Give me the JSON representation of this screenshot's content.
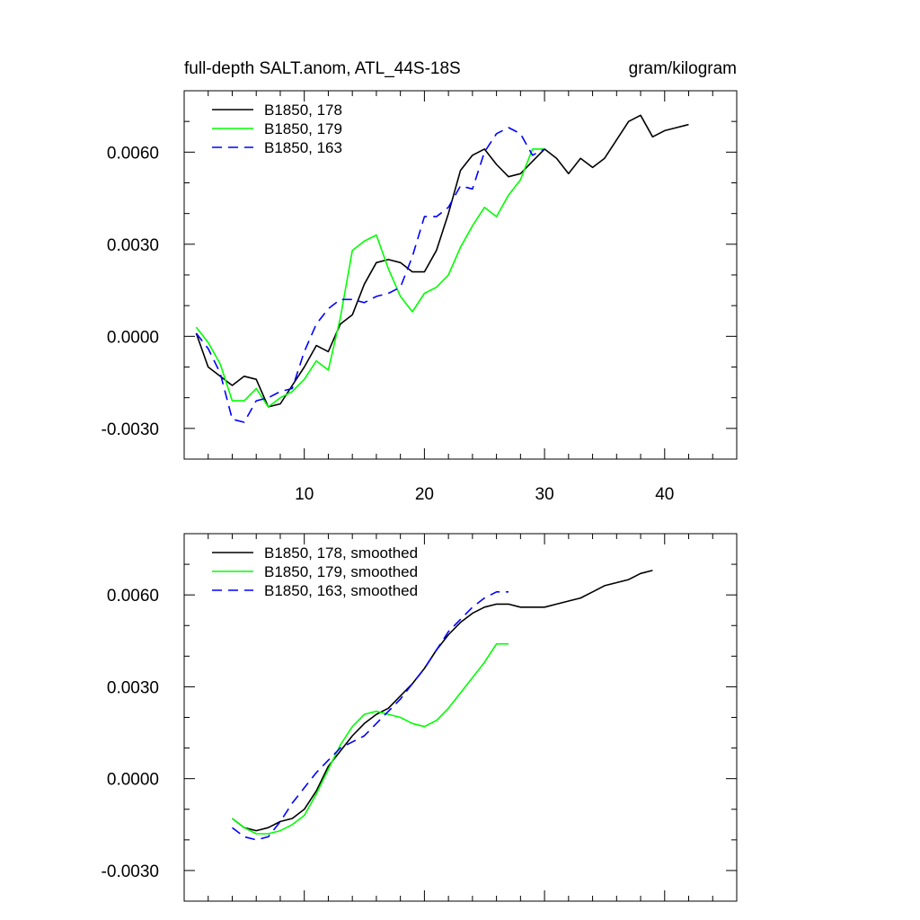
{
  "chart_data": [
    {
      "type": "line",
      "title_left": "full-depth SALT.anom, ATL_44S-18S",
      "title_right": "gram/kilogram",
      "xlim": [
        0,
        46
      ],
      "ylim": [
        -0.004,
        0.008
      ],
      "x_ticks": [
        10,
        20,
        30,
        40
      ],
      "x_tick_labels": [
        "10",
        "20",
        "30",
        "40"
      ],
      "x_minor_step": 2,
      "y_ticks": [
        -0.003,
        0.0,
        0.003,
        0.006
      ],
      "y_tick_labels": [
        "-0.0030",
        "0.0000",
        "0.0030",
        "0.0060"
      ],
      "y_minor_step": 0.001,
      "series": [
        {
          "name": "B1850, 178",
          "color": "#000000",
          "dash": "solid",
          "x": [
            1,
            2,
            3,
            4,
            5,
            6,
            7,
            8,
            9,
            10,
            11,
            12,
            13,
            14,
            15,
            16,
            17,
            18,
            19,
            20,
            21,
            22,
            23,
            24,
            25,
            26,
            27,
            28,
            29,
            30,
            31,
            32,
            33,
            34,
            35,
            36,
            37,
            38,
            39,
            40,
            41,
            42
          ],
          "values": [
            0.0001,
            -0.001,
            -0.0013,
            -0.0016,
            -0.0013,
            -0.0014,
            -0.0023,
            -0.0022,
            -0.0016,
            -0.001,
            -0.0003,
            -0.0005,
            0.0004,
            0.0007,
            0.0017,
            0.0024,
            0.0025,
            0.0024,
            0.0021,
            0.0021,
            0.0028,
            0.004,
            0.0054,
            0.0059,
            0.0061,
            0.0056,
            0.0052,
            0.0053,
            0.0057,
            0.0061,
            0.0058,
            0.0053,
            0.0058,
            0.0055,
            0.0058,
            0.0064,
            0.007,
            0.0072,
            0.0065,
            0.0067,
            0.0068,
            0.0069
          ]
        },
        {
          "name": "B1850, 179",
          "color": "#00ff00",
          "dash": "solid",
          "x": [
            1,
            2,
            3,
            4,
            5,
            6,
            7,
            8,
            9,
            10,
            11,
            12,
            13,
            14,
            15,
            16,
            17,
            18,
            19,
            20,
            21,
            22,
            23,
            24,
            25,
            26,
            27,
            28,
            29,
            30
          ],
          "values": [
            0.0003,
            -0.0002,
            -0.0009,
            -0.0021,
            -0.0021,
            -0.0017,
            -0.0023,
            -0.002,
            -0.0018,
            -0.0014,
            -0.0008,
            -0.0011,
            0.0006,
            0.0028,
            0.0031,
            0.0033,
            0.0022,
            0.0013,
            0.0008,
            0.0014,
            0.0016,
            0.002,
            0.0029,
            0.0036,
            0.0042,
            0.0039,
            0.0046,
            0.0051,
            0.0061,
            0.0061
          ]
        },
        {
          "name": "B1850, 163",
          "color": "#0000ff",
          "dash": "dashed",
          "x": [
            1,
            2,
            3,
            4,
            5,
            6,
            7,
            8,
            9,
            10,
            11,
            12,
            13,
            14,
            15,
            16,
            17,
            18,
            19,
            20,
            21,
            22,
            23,
            24,
            25,
            26,
            27,
            28,
            29,
            30
          ],
          "values": [
            0.0001,
            -0.0004,
            -0.0012,
            -0.0027,
            -0.0028,
            -0.0021,
            -0.002,
            -0.0018,
            -0.0017,
            -0.0005,
            0.0004,
            0.0009,
            0.0012,
            0.0012,
            0.0011,
            0.0013,
            0.0014,
            0.0016,
            0.0026,
            0.0039,
            0.0039,
            0.0042,
            0.0049,
            0.0048,
            0.006,
            0.0066,
            0.0068,
            0.0066,
            0.0059,
            0.0061
          ]
        }
      ]
    },
    {
      "type": "line",
      "title_left": "",
      "title_right": "",
      "xlim": [
        0,
        46
      ],
      "ylim": [
        -0.004,
        0.008
      ],
      "x_ticks": [
        10,
        20,
        30,
        40
      ],
      "x_tick_labels": [],
      "x_minor_step": 2,
      "y_ticks": [
        -0.003,
        0.0,
        0.003,
        0.006
      ],
      "y_tick_labels": [
        "-0.0030",
        "0.0000",
        "0.0030",
        "0.0060"
      ],
      "y_minor_step": 0.001,
      "series": [
        {
          "name": "B1850, 178, smoothed",
          "color": "#000000",
          "dash": "solid",
          "x": [
            4,
            5,
            6,
            7,
            8,
            9,
            10,
            11,
            12,
            13,
            14,
            15,
            16,
            17,
            18,
            19,
            20,
            21,
            22,
            23,
            24,
            25,
            26,
            27,
            28,
            29,
            30,
            31,
            32,
            33,
            34,
            35,
            36,
            37,
            38,
            39
          ],
          "values": [
            -0.0013,
            -0.0016,
            -0.0017,
            -0.0016,
            -0.0014,
            -0.0013,
            -0.001,
            -0.0004,
            0.0004,
            0.0009,
            0.0014,
            0.0018,
            0.0021,
            0.0023,
            0.0027,
            0.0031,
            0.0036,
            0.0042,
            0.0047,
            0.0051,
            0.0054,
            0.0056,
            0.0057,
            0.0057,
            0.0056,
            0.0056,
            0.0056,
            0.0057,
            0.0058,
            0.0059,
            0.0061,
            0.0063,
            0.0064,
            0.0065,
            0.0067,
            0.0068
          ]
        },
        {
          "name": "B1850, 179, smoothed",
          "color": "#00ff00",
          "dash": "solid",
          "x": [
            4,
            5,
            6,
            7,
            8,
            9,
            10,
            11,
            12,
            13,
            14,
            15,
            16,
            17,
            18,
            19,
            20,
            21,
            22,
            23,
            24,
            25,
            26,
            27
          ],
          "values": [
            -0.0013,
            -0.0016,
            -0.0018,
            -0.0018,
            -0.0017,
            -0.0015,
            -0.0012,
            -0.0005,
            0.0003,
            0.0011,
            0.0017,
            0.0021,
            0.0022,
            0.0021,
            0.002,
            0.0018,
            0.0017,
            0.0019,
            0.0023,
            0.0028,
            0.0033,
            0.0038,
            0.0044,
            0.0044
          ]
        },
        {
          "name": "B1850, 163, smoothed",
          "color": "#0000ff",
          "dash": "dashed",
          "x": [
            4,
            5,
            6,
            7,
            8,
            9,
            10,
            11,
            12,
            13,
            14,
            15,
            16,
            17,
            18,
            19,
            20,
            21,
            22,
            23,
            24,
            25,
            26,
            27
          ],
          "values": [
            -0.0016,
            -0.0019,
            -0.002,
            -0.0019,
            -0.0014,
            -0.0008,
            -0.0003,
            0.0002,
            0.0006,
            0.001,
            0.0012,
            0.0014,
            0.0018,
            0.0022,
            0.0026,
            0.0031,
            0.0036,
            0.0042,
            0.0048,
            0.0052,
            0.0056,
            0.0059,
            0.0061,
            0.0061
          ]
        }
      ]
    }
  ]
}
